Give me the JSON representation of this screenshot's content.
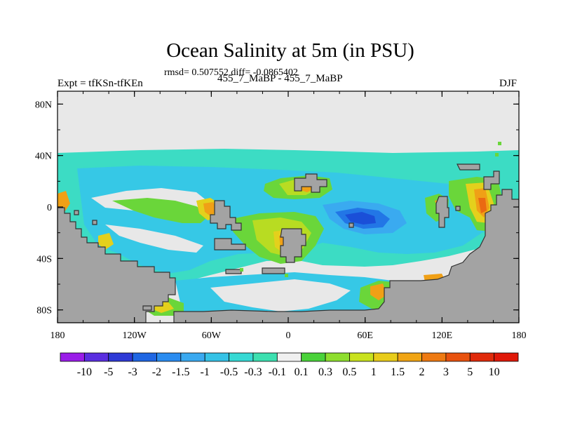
{
  "title": "Ocean Salinity at 5m (in PSU)",
  "stats": "rmsd= 0.507552 diff= -0.0865402",
  "experiment": "Expt = tfKSn-tfKEn",
  "difference_label": "455_7_MaBP - 455_7_MaBP",
  "season": "DJF",
  "axes": {
    "x_ticks": [
      "180",
      "120W",
      "60W",
      "0",
      "60E",
      "120E",
      "180"
    ],
    "y_ticks": [
      "80N",
      "40N",
      "0",
      "40S",
      "80S"
    ]
  },
  "colorbar": {
    "labels": [
      "-10",
      "-5",
      "-3",
      "-2",
      "-1.5",
      "-1",
      "-0.5",
      "-0.3",
      "-0.1",
      "0.1",
      "0.3",
      "0.5",
      "1",
      "1.5",
      "2",
      "3",
      "5",
      "10"
    ],
    "colors": [
      "#9a1de8",
      "#5a2ee0",
      "#2e3ad6",
      "#1f66e3",
      "#2a8cf0",
      "#3aa9f0",
      "#35c2e6",
      "#36d9d4",
      "#3ce0b0",
      "#f0f0f0",
      "#4ad23a",
      "#8ede2e",
      "#c9e21e",
      "#e8cc1a",
      "#f0a414",
      "#ee7a12",
      "#e8520e",
      "#e02a0a",
      "#e01808"
    ]
  },
  "map_colors": {
    "land": "#a3a3a3",
    "neutral": "#e8e8e8",
    "light_blue": "#3cdcc4",
    "cyan": "#36c8e6",
    "sky": "#3aaaf0",
    "blue": "#2276e6",
    "dark_blue": "#1a4fd8",
    "green": "#6ad63a",
    "yellow_green": "#b8dc22",
    "yellow": "#e4d01c",
    "orange": "#f0a016",
    "red_orange": "#ea6a12"
  }
}
